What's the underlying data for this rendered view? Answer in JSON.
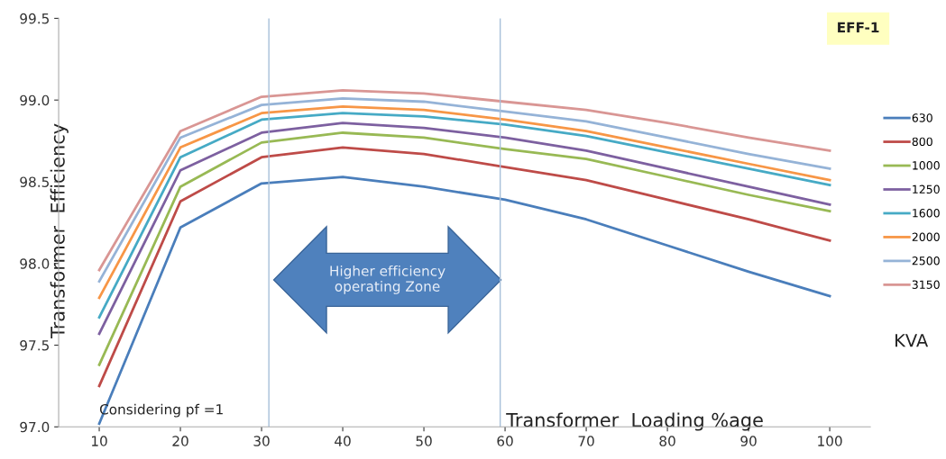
{
  "chart_data": {
    "type": "line",
    "xlabel": "Transformer  Loading %age",
    "ylabel": "Transformer  Efficiency",
    "legend_title": "KVA",
    "x": [
      10,
      20,
      30,
      40,
      50,
      60,
      70,
      80,
      90,
      100
    ],
    "xlim": [
      5,
      105
    ],
    "xticks": [
      10,
      20,
      30,
      40,
      50,
      60,
      70,
      80,
      90,
      100
    ],
    "ylim": [
      97,
      99.5
    ],
    "yticks": [
      {
        "value": 97,
        "label": "97.0"
      },
      97.5,
      {
        "value": 98,
        "label": "98.0"
      },
      98.5,
      {
        "value": 99,
        "label": "99.0"
      },
      99.5
    ],
    "series": [
      {
        "name": "630",
        "color": "#4a7ebb",
        "values": [
          97.02,
          98.22,
          98.49,
          98.53,
          98.47,
          98.39,
          98.27,
          98.11,
          97.95,
          97.8
        ]
      },
      {
        "name": "800",
        "color": "#be4b48",
        "values": [
          97.25,
          98.38,
          98.65,
          98.71,
          98.67,
          98.59,
          98.51,
          98.39,
          98.27,
          98.14
        ]
      },
      {
        "name": "1000",
        "color": "#98b954",
        "values": [
          97.38,
          98.47,
          98.74,
          98.8,
          98.77,
          98.7,
          98.64,
          98.53,
          98.42,
          98.32
        ]
      },
      {
        "name": "1250",
        "color": "#7d60a0",
        "values": [
          97.57,
          98.57,
          98.8,
          98.86,
          98.83,
          98.77,
          98.69,
          98.58,
          98.47,
          98.36
        ]
      },
      {
        "name": "1600",
        "color": "#46aac5",
        "values": [
          97.67,
          98.65,
          98.88,
          98.92,
          98.9,
          98.85,
          98.78,
          98.68,
          98.58,
          98.48
        ]
      },
      {
        "name": "2000",
        "color": "#f79646",
        "values": [
          97.79,
          98.71,
          98.92,
          98.96,
          98.94,
          98.88,
          98.81,
          98.71,
          98.61,
          98.51
        ]
      },
      {
        "name": "2500",
        "color": "#95b3d7",
        "values": [
          97.89,
          98.77,
          98.97,
          99.01,
          98.99,
          98.93,
          98.87,
          98.77,
          98.67,
          98.58
        ]
      },
      {
        "name": "3150",
        "color": "#d99694",
        "values": [
          97.96,
          98.81,
          99.02,
          99.06,
          99.04,
          98.99,
          98.94,
          98.86,
          98.77,
          98.69
        ]
      }
    ],
    "ref_lines": [
      {
        "axis": "x",
        "value": 30.9,
        "color": "#a6bfd9"
      },
      {
        "axis": "x",
        "value": 59.4,
        "color": "#a6bfd9"
      }
    ],
    "annotations": [
      "Considering pf =1",
      "Higher efficiency\noperating Zone",
      "EFF-1"
    ],
    "grid": false,
    "legend": "right",
    "marker": "none",
    "line_style": "solid"
  }
}
